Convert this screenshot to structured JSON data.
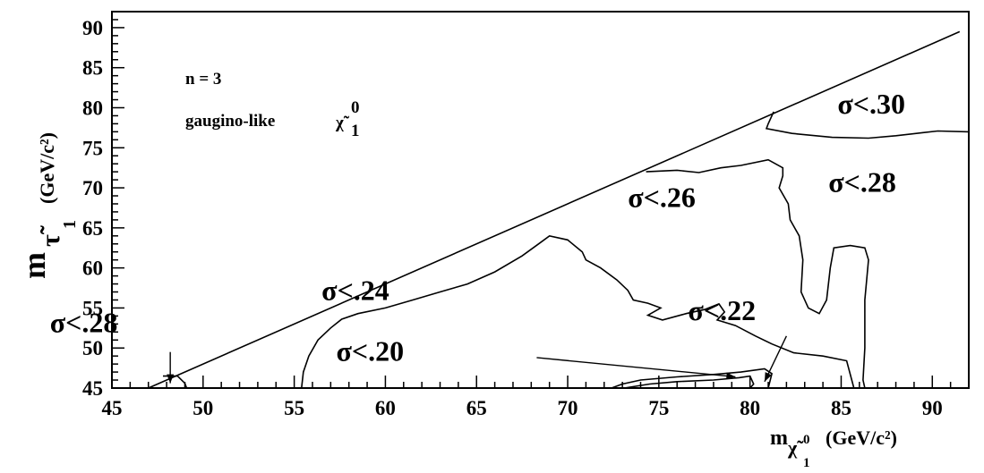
{
  "chart_data": {
    "type": "line",
    "xlabel": {
      "main": "m",
      "sub": "χ̃",
      "sup": "0",
      "subsub": "1",
      "unit": "(GeV/c²)"
    },
    "ylabel": {
      "main": "m",
      "sub": "τ̃",
      "subsub": "1",
      "unit": "(GeV/c²)"
    },
    "xlim": [
      45,
      92
    ],
    "ylim": [
      45,
      92
    ],
    "x_ticks": [
      "45",
      "50",
      "55",
      "60",
      "65",
      "70",
      "75",
      "80",
      "85",
      "90"
    ],
    "y_ticks": [
      "45",
      "50",
      "55",
      "60",
      "65",
      "70",
      "75",
      "80",
      "85",
      "90"
    ],
    "x_tick_values": [
      45,
      50,
      55,
      60,
      65,
      70,
      75,
      80,
      85,
      90
    ],
    "y_tick_values": [
      45,
      50,
      55,
      60,
      65,
      70,
      75,
      80,
      85,
      90
    ],
    "annotation": {
      "n": "n = 3",
      "type": "gaugino-like",
      "particle": "χ̃",
      "particle_sup": "0",
      "particle_sub": "1"
    },
    "region_labels": [
      {
        "text": "σ<.30",
        "x": 84.8,
        "y": 79.3
      },
      {
        "text": "σ<.28",
        "x": 84.3,
        "y": 69.5
      },
      {
        "text": "σ<.26",
        "x": 73.3,
        "y": 67.6
      },
      {
        "text": "σ<.24",
        "x": 56.5,
        "y": 56.0
      },
      {
        "text": "σ<.22",
        "x": 76.6,
        "y": 53.5
      },
      {
        "text": "σ<.20",
        "x": 57.3,
        "y": 48.4
      },
      {
        "text": "σ<.28",
        "x": 41.6,
        "y": 52.0
      }
    ],
    "diagonal": [
      [
        47.0,
        45.0
      ],
      [
        91.5,
        89.5
      ]
    ],
    "contours": [
      {
        "name": "",
        "points": [
          [
            55.4,
            45
          ],
          [
            55.5,
            47
          ],
          [
            55.8,
            49
          ],
          [
            56.3,
            51
          ],
          [
            57.0,
            52.5
          ],
          [
            57.6,
            53.6
          ],
          [
            58.5,
            54.3
          ],
          [
            60.0,
            55.0
          ],
          [
            61.5,
            56.0
          ],
          [
            63.0,
            57.0
          ],
          [
            64.5,
            58.0
          ],
          [
            66.0,
            59.5
          ],
          [
            67.5,
            61.5
          ],
          [
            68.4,
            63.0
          ],
          [
            69.0,
            64.0
          ],
          [
            70.0,
            63.5
          ],
          [
            70.8,
            62.0
          ],
          [
            71.0,
            61.0
          ],
          [
            71.8,
            60.0
          ],
          [
            72.7,
            58.5
          ],
          [
            73.3,
            57.2
          ],
          [
            73.6,
            56.0
          ],
          [
            74.4,
            55.6
          ],
          [
            75.1,
            55.0
          ],
          [
            74.4,
            54.1
          ],
          [
            75.2,
            53.5
          ],
          [
            76.5,
            54.3
          ],
          [
            77.5,
            54.8
          ],
          [
            78.3,
            55.5
          ],
          [
            78.6,
            54.5
          ],
          [
            78.2,
            53.5
          ],
          [
            79.2,
            52.8
          ],
          [
            80.3,
            51.5
          ],
          [
            81.2,
            50.5
          ],
          [
            82.4,
            49.4
          ],
          [
            84.0,
            49.0
          ],
          [
            85.3,
            48.4
          ],
          [
            85.7,
            45
          ]
        ]
      },
      {
        "name": "",
        "points": [
          [
            74.3,
            72.0
          ],
          [
            76.0,
            72.2
          ],
          [
            77.2,
            71.9
          ],
          [
            78.4,
            72.5
          ],
          [
            79.5,
            72.8
          ],
          [
            81.0,
            73.5
          ],
          [
            81.8,
            72.5
          ],
          [
            81.8,
            71.5
          ],
          [
            81.6,
            70.0
          ],
          [
            82.1,
            68.0
          ],
          [
            82.2,
            66.0
          ],
          [
            82.7,
            64.0
          ],
          [
            82.9,
            61.0
          ],
          [
            82.8,
            57.0
          ],
          [
            83.2,
            55.0
          ],
          [
            83.8,
            54.3
          ],
          [
            84.2,
            56.0
          ],
          [
            84.4,
            60.0
          ],
          [
            84.6,
            62.5
          ],
          [
            85.5,
            62.8
          ],
          [
            86.3,
            62.5
          ],
          [
            86.5,
            61.0
          ],
          [
            86.3,
            56.0
          ],
          [
            86.3,
            50.0
          ],
          [
            86.2,
            46.0
          ],
          [
            86.3,
            45
          ]
        ]
      },
      {
        "name": "",
        "points": [
          [
            81.3,
            79.5
          ],
          [
            81.0,
            78.0
          ],
          [
            80.9,
            77.4
          ],
          [
            82.3,
            76.8
          ],
          [
            84.5,
            76.3
          ],
          [
            86.5,
            76.2
          ],
          [
            88.0,
            76.5
          ],
          [
            89.5,
            76.9
          ],
          [
            90.3,
            77.1
          ],
          [
            92,
            77.0
          ]
        ]
      },
      {
        "name": "",
        "points": [
          [
            47.8,
            46.5
          ],
          [
            48.6,
            46.5
          ],
          [
            49.0,
            45.6
          ],
          [
            49.1,
            45
          ]
        ]
      },
      {
        "name": "",
        "points": [
          [
            72.4,
            45
          ],
          [
            73.0,
            45.5
          ],
          [
            74.0,
            46.0
          ],
          [
            76.0,
            46.4
          ],
          [
            78.0,
            46.7
          ],
          [
            79.5,
            47.0
          ],
          [
            80.8,
            47.4
          ],
          [
            81.2,
            46.8
          ],
          [
            81.0,
            45
          ]
        ]
      },
      {
        "name": "",
        "points": [
          [
            73.1,
            45
          ],
          [
            74.5,
            45.5
          ],
          [
            76.0,
            45.8
          ],
          [
            78.0,
            46.0
          ],
          [
            79.4,
            46.3
          ],
          [
            80.0,
            46.5
          ],
          [
            80.2,
            45.5
          ],
          [
            80.0,
            45
          ]
        ]
      }
    ],
    "arrows": [
      {
        "from": [
          48.2,
          49.5
        ],
        "to": [
          48.2,
          45.6
        ]
      },
      {
        "from": [
          68.3,
          48.8
        ],
        "to": [
          79.2,
          46.4
        ]
      },
      {
        "from": [
          82.0,
          51.5
        ],
        "to": [
          80.8,
          45.8
        ]
      }
    ]
  }
}
